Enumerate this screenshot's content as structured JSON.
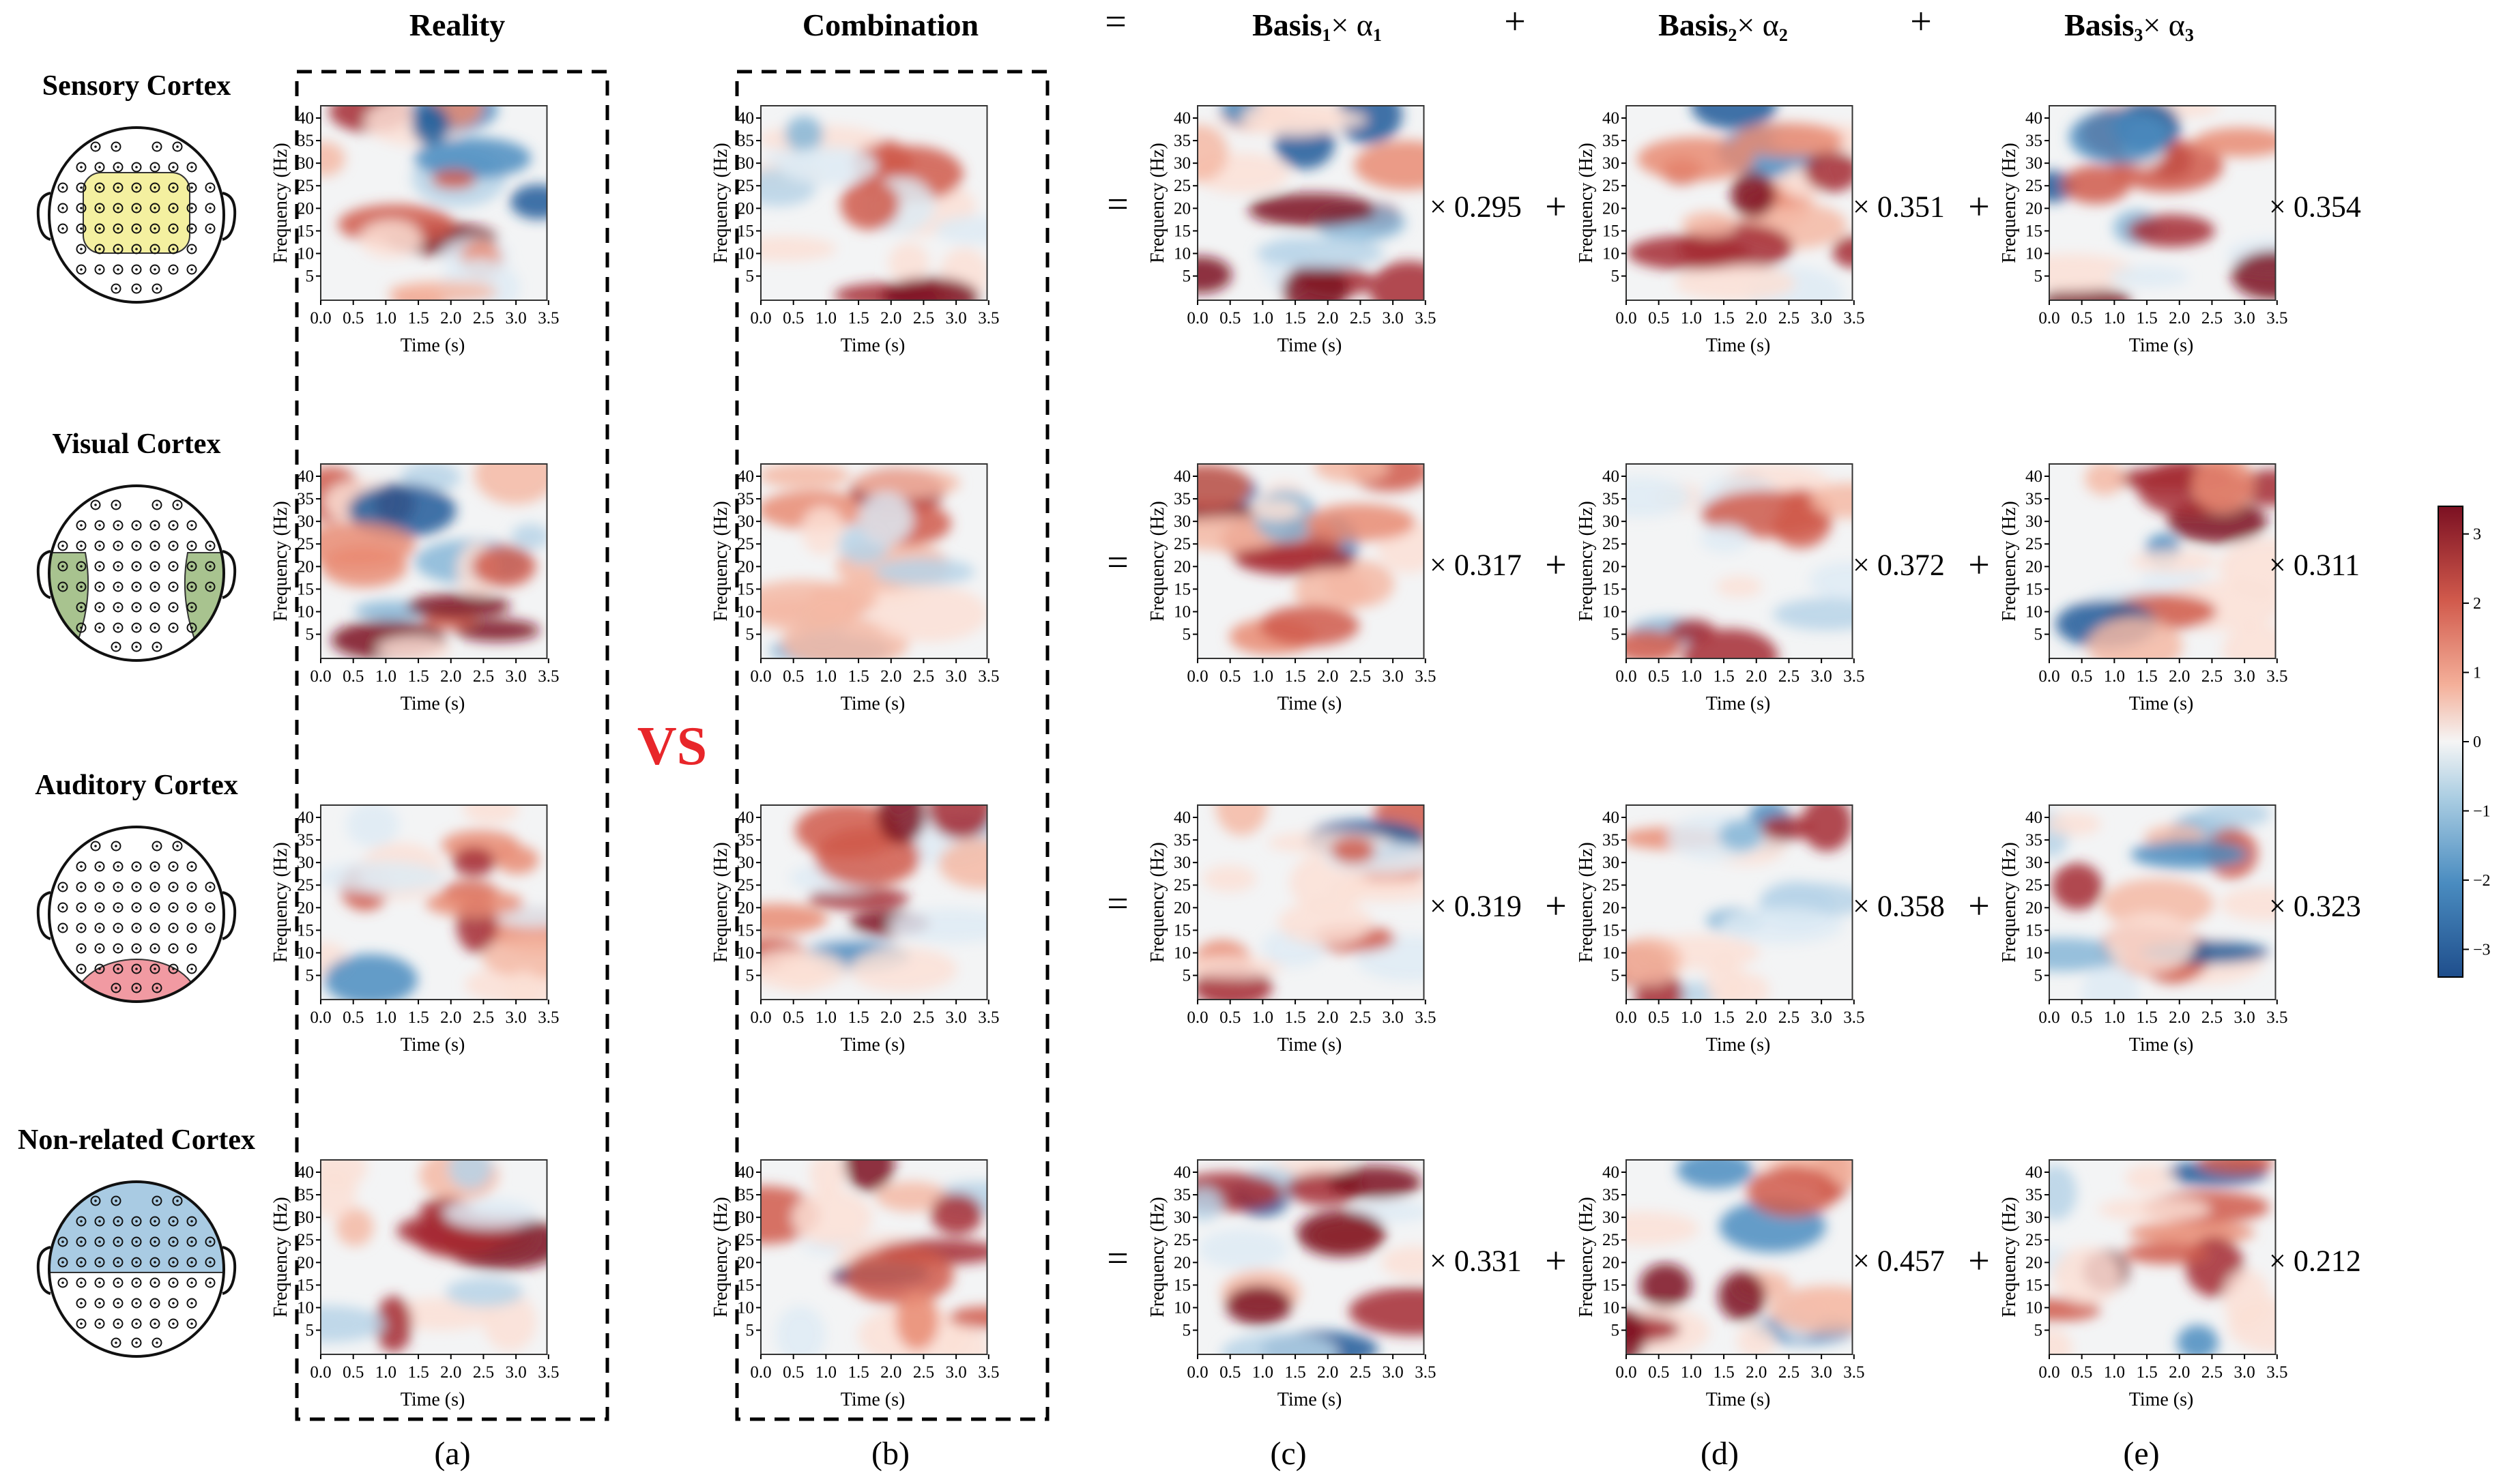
{
  "headers": {
    "reality": "Reality",
    "combination": "Combination",
    "equals": "=",
    "plus": "+",
    "basis": [
      {
        "name": "Basis",
        "sub": "1",
        "times": "× α",
        "alpha_sub": "1"
      },
      {
        "name": "Basis",
        "sub": "2",
        "times": "× α",
        "alpha_sub": "2"
      },
      {
        "name": "Basis",
        "sub": "3",
        "times": "× α",
        "alpha_sub": "3"
      }
    ]
  },
  "vs_label": "VS",
  "regions": [
    {
      "name": "Sensory Cortex",
      "highlight": "front-center",
      "highlight_color": "#f4f0a0",
      "coefficients": [
        "× 0.295",
        "× 0.351",
        "× 0.354"
      ]
    },
    {
      "name": "Visual Cortex",
      "highlight": "sides",
      "highlight_color": "#a8c38f",
      "coefficients": [
        "× 0.317",
        "× 0.372",
        "× 0.311"
      ]
    },
    {
      "name": "Auditory Cortex",
      "highlight": "back",
      "highlight_color": "#f19aa2",
      "coefficients": [
        "× 0.319",
        "× 0.358",
        "× 0.323"
      ]
    },
    {
      "name": "Non-related Cortex",
      "highlight": "top",
      "highlight_color": "#a9cbe3",
      "coefficients": [
        "× 0.331",
        "× 0.457",
        "× 0.212"
      ]
    }
  ],
  "operators": {
    "equals": "=",
    "plus": "+"
  },
  "axes": {
    "xlabel": "Time (s)",
    "ylabel": "Frequency (Hz)",
    "xticks": [
      "0.0",
      "0.5",
      "1.0",
      "1.5",
      "2.0",
      "2.5",
      "3.0",
      "3.5"
    ],
    "yticks": [
      "40",
      "35",
      "30",
      "25",
      "20",
      "15",
      "10",
      "5"
    ]
  },
  "panel_labels": [
    "(a)",
    "(b)",
    "(c)",
    "(d)",
    "(e)"
  ],
  "colorbar": {
    "ticks": [
      "3",
      "2",
      "1",
      "0",
      "−1",
      "−2",
      "−3"
    ],
    "range": [
      -3.4,
      3.4
    ],
    "low_color": "#1f4e8c",
    "mid_color": "#f7f7f7",
    "high_color": "#7b1022"
  }
}
